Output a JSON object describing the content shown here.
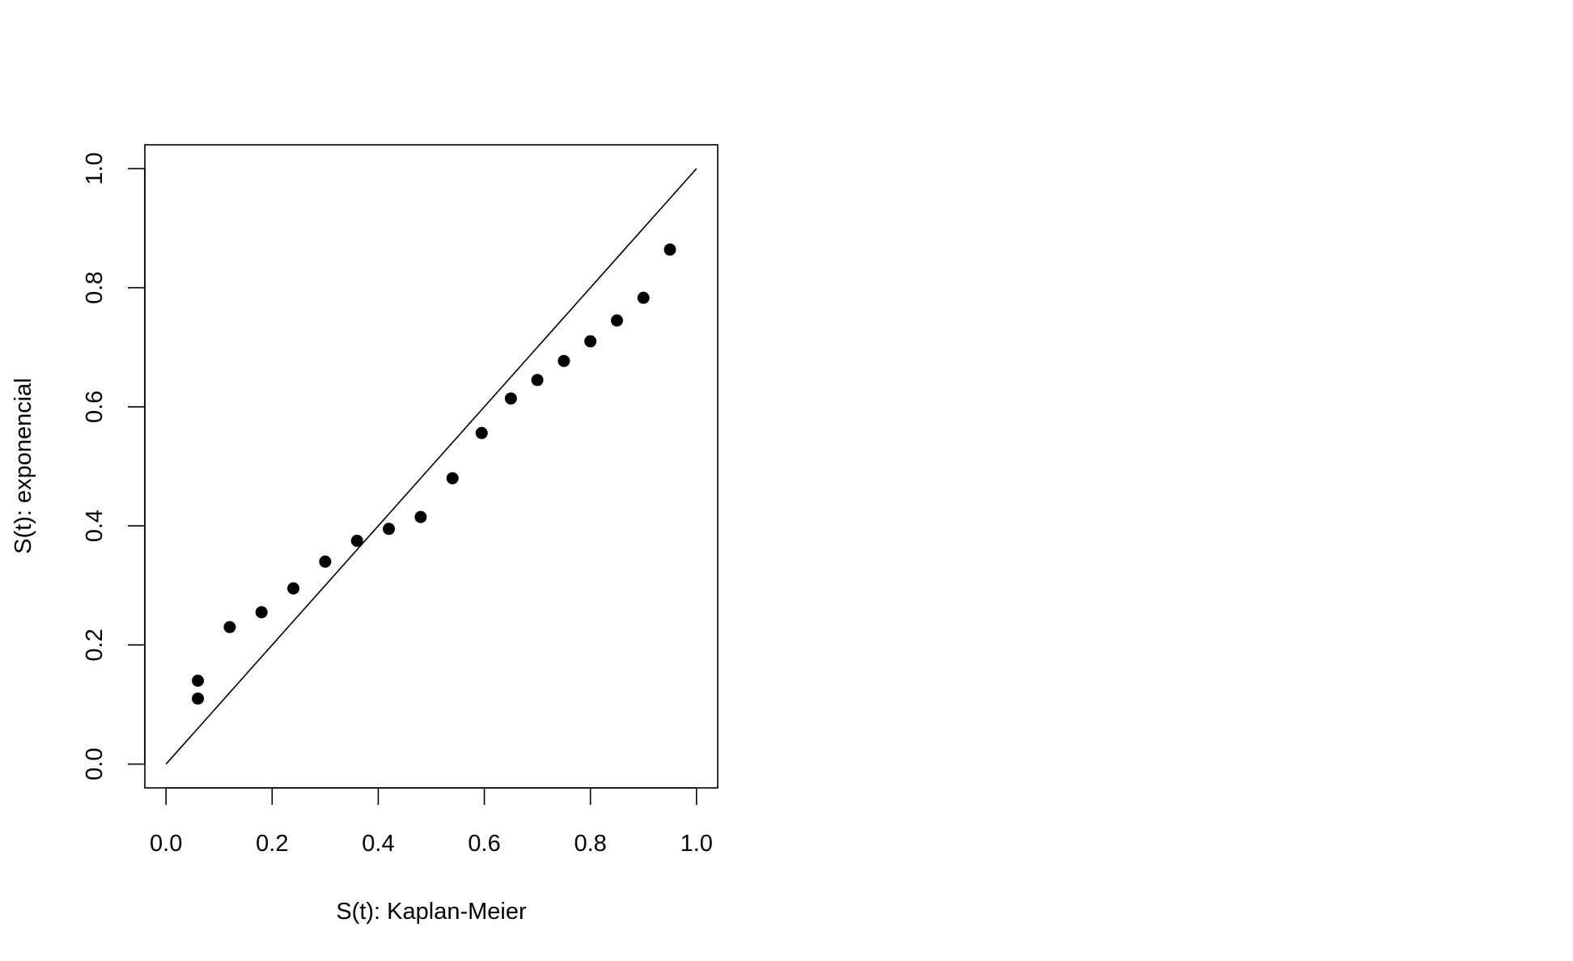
{
  "chart_data": {
    "type": "scatter",
    "title": "",
    "xlabel": "S(t): Kaplan-Meier",
    "ylabel": "S(t): exponencial",
    "xlim": [
      -0.04,
      1.04
    ],
    "ylim": [
      -0.04,
      1.04
    ],
    "xticks": [
      0.0,
      0.2,
      0.4,
      0.6,
      0.8,
      1.0
    ],
    "yticks": [
      0.0,
      0.2,
      0.4,
      0.6,
      0.8,
      1.0
    ],
    "xtick_labels": [
      "0.0",
      "0.2",
      "0.4",
      "0.6",
      "0.8",
      "1.0"
    ],
    "ytick_labels": [
      "0.0",
      "0.2",
      "0.4",
      "0.6",
      "0.8",
      "1.0"
    ],
    "grid": false,
    "reference_line": {
      "from": [
        0,
        0
      ],
      "to": [
        1,
        1
      ]
    },
    "points": {
      "x": [
        0.06,
        0.06,
        0.12,
        0.18,
        0.24,
        0.3,
        0.36,
        0.42,
        0.48,
        0.54,
        0.595,
        0.65,
        0.7,
        0.75,
        0.8,
        0.85,
        0.9,
        0.95
      ],
      "y": [
        0.11,
        0.14,
        0.23,
        0.255,
        0.295,
        0.34,
        0.375,
        0.395,
        0.415,
        0.48,
        0.556,
        0.614,
        0.645,
        0.677,
        0.71,
        0.745,
        0.783,
        0.864
      ]
    },
    "colors": {
      "point": "#000000",
      "line": "#000000",
      "frame": "#000000"
    }
  }
}
